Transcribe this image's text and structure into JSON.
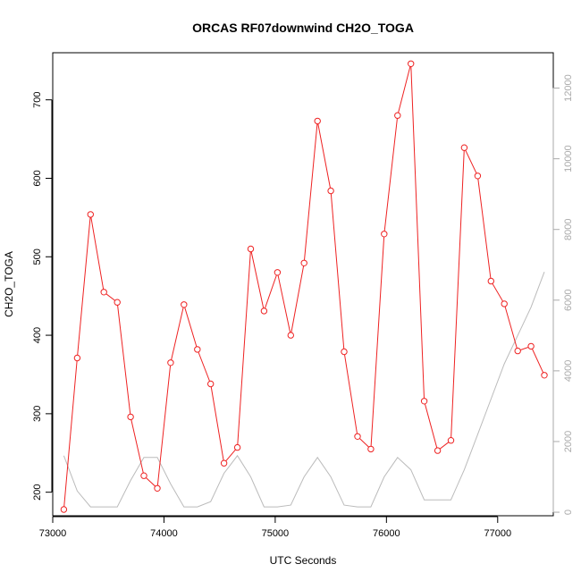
{
  "chart_data": {
    "type": "line",
    "title": "ORCAS RF07downwind CH2O_TOGA",
    "xlabel": "UTC Seconds",
    "ylabel": "CH2O_TOGA",
    "xlim": [
      73000,
      77500
    ],
    "ylim": [
      170,
      760
    ],
    "y2lim": [
      -100,
      13000
    ],
    "xticks": [
      73000,
      74000,
      75000,
      76000,
      77000
    ],
    "yticks": [
      200,
      300,
      400,
      500,
      600,
      700
    ],
    "y2ticks": [
      0,
      2000,
      4000,
      6000,
      8000,
      10000,
      12000
    ],
    "grid": false,
    "legend": "none",
    "colors": {
      "primary": "#ee2222",
      "secondary": "#bbbbbb",
      "axis": "#000000",
      "axis2": "#aaaaaa"
    },
    "series": [
      {
        "axis": "left",
        "marker": "open-circle",
        "color": "#ee2222",
        "x": [
          73100,
          73220,
          73340,
          73460,
          73580,
          73700,
          73820,
          73940,
          74060,
          74180,
          74300,
          74420,
          74540,
          74660,
          74780,
          74900,
          75020,
          75140,
          75260,
          75380,
          75500,
          75620,
          75740,
          75860,
          75980,
          76100,
          76220,
          76340,
          76460,
          76580,
          76700,
          76820,
          76940,
          77060,
          77180,
          77300,
          77420
        ],
        "values": [
          178,
          371,
          554,
          455,
          442,
          296,
          221,
          205,
          365,
          439,
          382,
          338,
          237,
          257,
          510,
          431,
          480,
          400,
          492,
          673,
          584,
          379,
          271,
          255,
          529,
          680,
          746,
          316,
          253,
          266,
          639,
          603,
          469,
          440,
          380,
          386,
          349
        ]
      },
      {
        "axis": "right",
        "marker": "none",
        "color": "#bbbbbb",
        "x": [
          73100,
          73220,
          73340,
          73460,
          73580,
          73700,
          73820,
          73940,
          74060,
          74180,
          74300,
          74420,
          74540,
          74660,
          74780,
          74900,
          75020,
          75140,
          75260,
          75380,
          75500,
          75620,
          75740,
          75860,
          75980,
          76100,
          76220,
          76340,
          76460,
          76580,
          76700,
          76820,
          76940,
          77060,
          77180,
          77300,
          77420
        ],
        "values": [
          1600,
          600,
          150,
          150,
          150,
          900,
          1550,
          1550,
          800,
          150,
          150,
          300,
          1100,
          1600,
          1000,
          150,
          150,
          200,
          1000,
          1550,
          1000,
          200,
          150,
          150,
          1000,
          1550,
          1200,
          350,
          350,
          350,
          1200,
          2200,
          3200,
          4200,
          5000,
          5800,
          6800
        ]
      }
    ]
  }
}
